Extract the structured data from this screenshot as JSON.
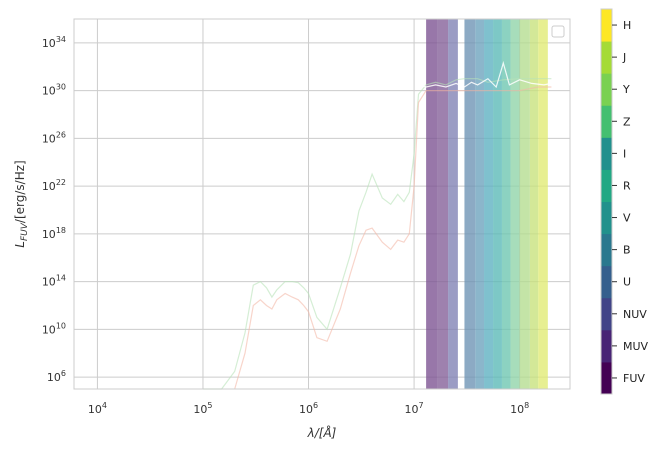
{
  "chart_data": {
    "type": "line",
    "title": "",
    "xlabel": "λ/[Å]",
    "ylabel": "L_FUV/[erg/s/Hz]",
    "xscale": "log",
    "yscale": "log",
    "xlim": [
      6000,
      300000000
    ],
    "ylim": [
      100000,
      1e+36
    ],
    "x_ticks": [
      {
        "value": 10000,
        "base": "10",
        "exp": "4"
      },
      {
        "value": 100000,
        "base": "10",
        "exp": "5"
      },
      {
        "value": 1000000,
        "base": "10",
        "exp": "6"
      },
      {
        "value": 10000000,
        "base": "10",
        "exp": "7"
      },
      {
        "value": 100000000,
        "base": "10",
        "exp": "8"
      }
    ],
    "y_ticks": [
      {
        "value": 1000000.0,
        "base": "10",
        "exp": "6"
      },
      {
        "value": 10000000000.0,
        "base": "10",
        "exp": "10"
      },
      {
        "value": 100000000000000.0,
        "base": "10",
        "exp": "14"
      },
      {
        "value": 1e+18,
        "base": "10",
        "exp": "18"
      },
      {
        "value": 1e+22,
        "base": "10",
        "exp": "22"
      },
      {
        "value": 1e+26,
        "base": "10",
        "exp": "26"
      },
      {
        "value": 1e+30,
        "base": "10",
        "exp": "30"
      },
      {
        "value": 1e+34,
        "base": "10",
        "exp": "34"
      }
    ],
    "grid": true,
    "legend": {
      "placement": "top-right",
      "entries": []
    },
    "series": [
      {
        "color": "#b9e3b9",
        "opacity": 0.6,
        "x": [
          100000,
          150000,
          200000,
          250000,
          300000,
          350000,
          400000,
          450000,
          500000,
          600000,
          700000,
          800000,
          900000,
          1000000,
          1200000,
          1500000,
          2000000,
          2500000,
          3000000,
          3500000,
          4000000,
          5000000,
          6000000,
          7000000,
          8000000,
          9000000,
          10000000,
          11000000,
          13000000,
          16000000,
          20000000,
          25000000,
          30000000,
          40000000,
          50000000,
          70000000,
          100000000,
          150000000,
          200000000
        ],
        "y": [
          10000.0,
          100000.0,
          3000000.0,
          5000000000.0,
          50000000000000.0,
          100000000000000.0,
          30000000000000.0,
          5000000000000.0,
          20000000000000.0,
          100000000000000.0,
          100000000000000.0,
          80000000000000.0,
          30000000000000.0,
          10000000000000.0,
          100000000000.0,
          10000000000.0,
          30000000000000.0,
          2e+16,
          8e+19,
          3e+21,
          1e+23,
          1e+21,
          3e+20,
          2e+21,
          5e+20,
          3e+21,
          5e+24,
          5e+29,
          3e+30,
          5e+30,
          3e+30,
          8e+30,
          1e+31,
          1e+31,
          5e+30,
          8e+30,
          1e+31,
          1e+31,
          1e+31
        ]
      },
      {
        "color": "#f4b9a8",
        "opacity": 0.6,
        "x": [
          200000,
          250000,
          300000,
          350000,
          400000,
          450000,
          500000,
          600000,
          700000,
          800000,
          900000,
          1000000,
          1200000,
          1500000,
          2000000,
          2500000,
          3000000,
          3500000,
          4000000,
          5000000,
          6000000,
          7000000,
          8000000,
          9000000,
          10000000,
          11000000,
          13000000,
          16000000,
          20000000,
          25000000,
          30000000,
          40000000,
          50000000,
          70000000,
          100000000,
          150000000,
          200000000
        ],
        "y": [
          100000.0,
          100000000.0,
          1000000000000.0,
          3000000000000.0,
          1000000000000.0,
          500000000000.0,
          3000000000000.0,
          10000000000000.0,
          5000000000000.0,
          3000000000000.0,
          1000000000000.0,
          300000000000.0,
          2000000000.0,
          1000000000.0,
          500000000000.0,
          500000000000000.0,
          1e+17,
          2e+18,
          3e+18,
          2e+17,
          5e+16,
          3e+17,
          2e+17,
          1e+18,
          1e+22,
          1e+29,
          1e+30,
          1e+30,
          1e+30,
          1e+30,
          1e+30,
          1e+30,
          1e+30,
          1e+30,
          1e+30,
          2e+30,
          2e+30
        ]
      },
      {
        "color": "#ffffff",
        "opacity": 0.85,
        "x": [
          11000000,
          13000000,
          16000000,
          20000000,
          25000000,
          30000000,
          35000000,
          40000000,
          50000000,
          60000000,
          70000000,
          80000000,
          100000000,
          130000000,
          170000000,
          200000000
        ],
        "y": [
          3e+30,
          2e+30,
          3e+30,
          2e+30,
          4e+30,
          2e+30,
          5e+30,
          3e+30,
          1e+31,
          2e+30,
          2e+32,
          3e+30,
          8e+30,
          4e+30,
          3e+30,
          4e+30
        ]
      }
    ],
    "bands": [
      {
        "name": "FUV",
        "x_range": [
          13000000,
          16500000
        ],
        "color": "#7b5191"
      },
      {
        "name": "MUV",
        "x_range": [
          16500000,
          21000000
        ],
        "color": "#835d97"
      },
      {
        "name": "NUV",
        "x_range": [
          21000000,
          26000000
        ],
        "color": "#7f80b3"
      },
      {
        "name": "U",
        "x_range": [
          30000000,
          38000000
        ],
        "color": "#6b92b3"
      },
      {
        "name": "B",
        "x_range": [
          38000000,
          46000000
        ],
        "color": "#6aa2bd"
      },
      {
        "name": "V",
        "x_range": [
          46000000,
          56000000
        ],
        "color": "#5bafc0"
      },
      {
        "name": "R",
        "x_range": [
          56000000,
          68000000
        ],
        "color": "#58b8b6"
      },
      {
        "name": "I",
        "x_range": [
          68000000,
          82000000
        ],
        "color": "#6cc5b0"
      },
      {
        "name": "Z",
        "x_range": [
          82000000,
          100000000
        ],
        "color": "#8ed4a8"
      },
      {
        "name": "Y",
        "x_range": [
          100000000,
          125000000
        ],
        "color": "#b3dd8e"
      },
      {
        "name": "J",
        "x_range": [
          125000000,
          150000000
        ],
        "color": "#c6e27b"
      },
      {
        "name": "H",
        "x_range": [
          150000000,
          185000000
        ],
        "color": "#e0ea72"
      }
    ],
    "colorbar": {
      "labels": [
        "FUV",
        "MUV",
        "NUV",
        "U",
        "B",
        "V",
        "R",
        "I",
        "Z",
        "Y",
        "J",
        "H"
      ],
      "colors": [
        "#440154",
        "#482475",
        "#414487",
        "#355f8d",
        "#2a788e",
        "#21918c",
        "#22a884",
        "#21908d",
        "#44bf70",
        "#7ad151",
        "#a5db36",
        "#fde725"
      ]
    }
  }
}
